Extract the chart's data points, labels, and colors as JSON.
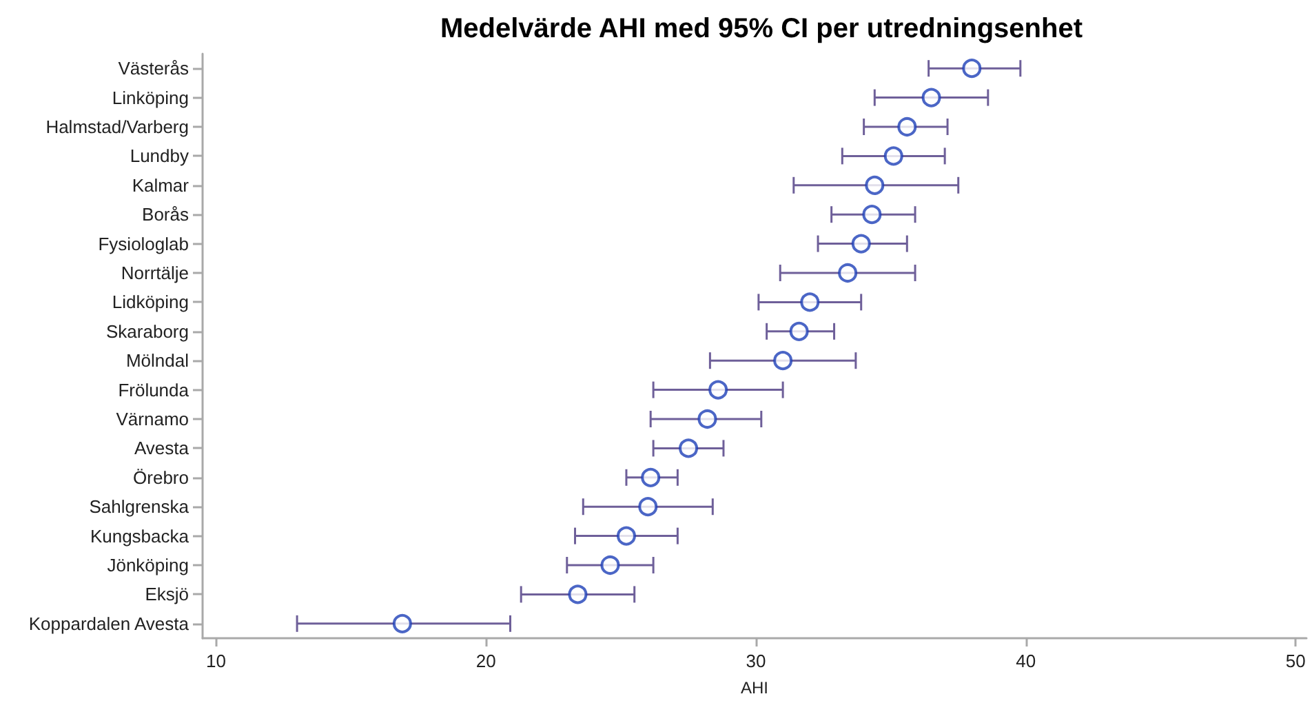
{
  "chart_data": {
    "type": "scatter",
    "title": "Medelvärde AHI med 95% CI per utredningsenhet",
    "xlabel": "AHI",
    "orientation": "horizontal",
    "marker": "circle",
    "color": "#1e40b8",
    "categories": [
      "Västerås",
      "Linköping",
      "Halmstad/Varberg",
      "Lundby",
      "Kalmar",
      "Borås",
      "Fysiologlab",
      "Norrtälje",
      "Lidköping",
      "Skaraborg",
      "Mölndal",
      "Frölunda",
      "Värnamo",
      "Avesta",
      "Örebro",
      "Sahlgrenska",
      "Kungsbacka",
      "Jönköping",
      "Eksjö",
      "Koppardalen Avesta"
    ],
    "values": [
      38.0,
      36.5,
      35.6,
      35.1,
      34.4,
      34.3,
      33.9,
      33.4,
      32.0,
      31.6,
      31.0,
      28.6,
      28.2,
      27.5,
      26.1,
      26.0,
      25.2,
      24.6,
      23.4,
      16.9
    ],
    "errors": [
      [
        36.4,
        39.8
      ],
      [
        34.4,
        38.6
      ],
      [
        34.0,
        37.1
      ],
      [
        33.2,
        37.0
      ],
      [
        31.4,
        37.5
      ],
      [
        32.8,
        35.9
      ],
      [
        32.3,
        35.6
      ],
      [
        30.9,
        35.9
      ],
      [
        30.1,
        33.9
      ],
      [
        30.4,
        32.9
      ],
      [
        28.3,
        33.7
      ],
      [
        26.2,
        31.0
      ],
      [
        26.1,
        30.2
      ],
      [
        26.2,
        28.8
      ],
      [
        25.2,
        27.1
      ],
      [
        23.6,
        28.4
      ],
      [
        23.3,
        27.1
      ],
      [
        23.0,
        26.2
      ],
      [
        21.3,
        25.5
      ],
      [
        13.0,
        20.9
      ]
    ],
    "xlim": [
      9.5,
      50.4
    ],
    "xticks": [
      10,
      20,
      30,
      40,
      50
    ]
  }
}
